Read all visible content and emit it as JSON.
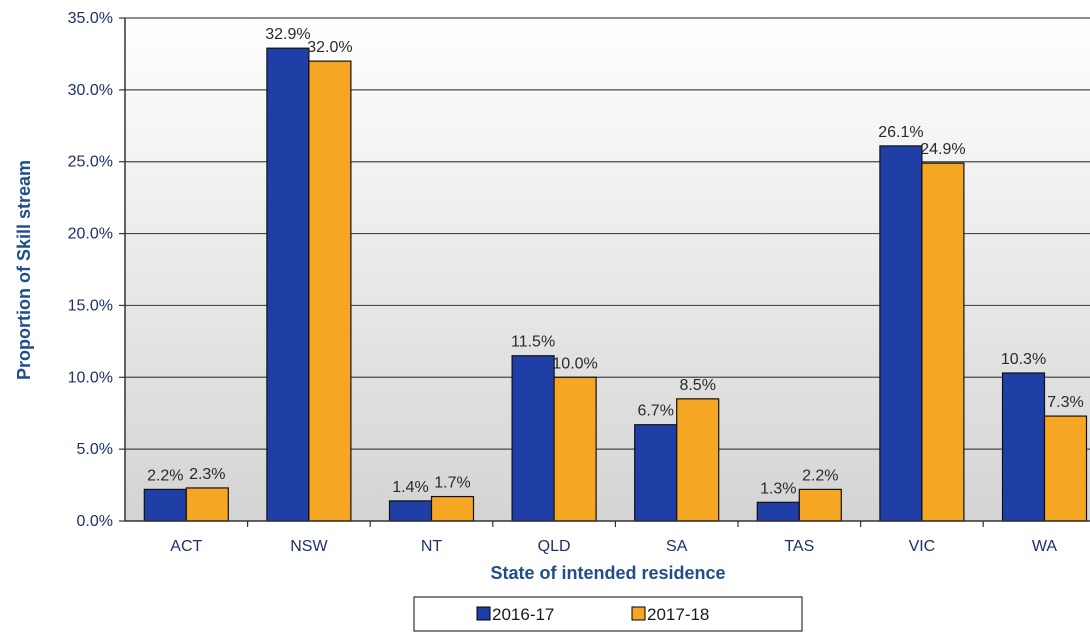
{
  "chart_data": {
    "type": "bar",
    "categories": [
      "ACT",
      "NSW",
      "NT",
      "QLD",
      "SA",
      "TAS",
      "VIC",
      "WA"
    ],
    "series": [
      {
        "name": "2016-17",
        "values": [
          2.2,
          32.9,
          1.4,
          11.5,
          6.7,
          1.3,
          26.1,
          10.3
        ],
        "labels": [
          "2.2%",
          "32.9%",
          "1.4%",
          "11.5%",
          "6.7%",
          "1.3%",
          "26.1%",
          "10.3%"
        ],
        "color": "#1f3fa6"
      },
      {
        "name": "2017-18",
        "values": [
          2.3,
          32.0,
          1.7,
          10.0,
          8.5,
          2.2,
          24.9,
          7.3
        ],
        "labels": [
          "2.3%",
          "32.0%",
          "1.7%",
          "10.0%",
          "8.5%",
          "2.2%",
          "24.9%",
          "7.3%"
        ],
        "color": "#f5a623"
      }
    ],
    "xlabel": "State of intended residence",
    "ylabel": "Proportion of Skill stream",
    "ylim": [
      0,
      35
    ],
    "yticks": [
      0,
      5,
      10,
      15,
      20,
      25,
      30,
      35
    ],
    "ytick_labels": [
      "0.0%",
      "5.0%",
      "10.0%",
      "15.0%",
      "20.0%",
      "25.0%",
      "30.0%",
      "35.0%"
    ],
    "grid": true,
    "legend_position": "bottom"
  }
}
